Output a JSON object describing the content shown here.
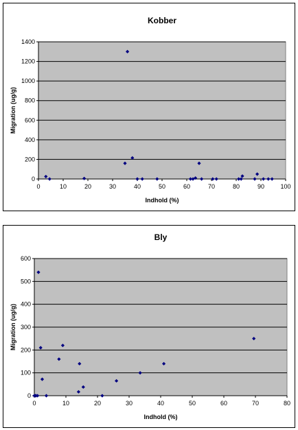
{
  "chart_data": [
    {
      "type": "scatter",
      "title": "Kobber",
      "xlabel": "Indhold (%)",
      "ylabel": "Migration (ug/g)",
      "xlim": [
        0,
        100
      ],
      "ylim": [
        0,
        1400
      ],
      "xticks": [
        "0",
        "10",
        "20",
        "30",
        "40",
        "50",
        "60",
        "70",
        "80",
        "90",
        "100"
      ],
      "yticks": [
        "0",
        "200",
        "400",
        "600",
        "800",
        "1000",
        "1200",
        "1400"
      ],
      "grid": true,
      "marker_color": "#000080",
      "plot_bg": "#c0c0c0",
      "x": [
        3,
        4.5,
        18.5,
        35,
        36,
        38,
        40,
        42,
        48,
        61.5,
        62.5,
        63.5,
        65,
        66,
        70.5,
        72,
        81,
        82,
        82.5,
        87.5,
        88.5,
        91,
        93,
        94.5
      ],
      "y": [
        25,
        0,
        5,
        160,
        1300,
        215,
        0,
        0,
        0,
        0,
        0,
        10,
        160,
        0,
        0,
        0,
        0,
        0,
        30,
        0,
        50,
        0,
        0,
        0
      ]
    },
    {
      "type": "scatter",
      "title": "Bly",
      "xlabel": "Indhold (%)",
      "ylabel": "Migration (ug/g)",
      "xlim": [
        0,
        80
      ],
      "ylim": [
        0,
        600
      ],
      "xticks": [
        "0",
        "10",
        "20",
        "30",
        "40",
        "50",
        "60",
        "70",
        "80"
      ],
      "yticks": [
        "0",
        "100",
        "200",
        "300",
        "400",
        "500",
        "600"
      ],
      "grid": true,
      "marker_color": "#000080",
      "plot_bg": "#c0c0c0",
      "x": [
        0,
        0.3,
        0.5,
        1,
        1.3,
        2,
        2.5,
        3.8,
        7.8,
        9,
        14,
        14.3,
        15.5,
        21.5,
        26,
        33.5,
        41,
        69.5
      ],
      "y": [
        0,
        0,
        0,
        0,
        540,
        210,
        72,
        0,
        160,
        220,
        17,
        140,
        38,
        0,
        65,
        100,
        140,
        250
      ]
    }
  ]
}
